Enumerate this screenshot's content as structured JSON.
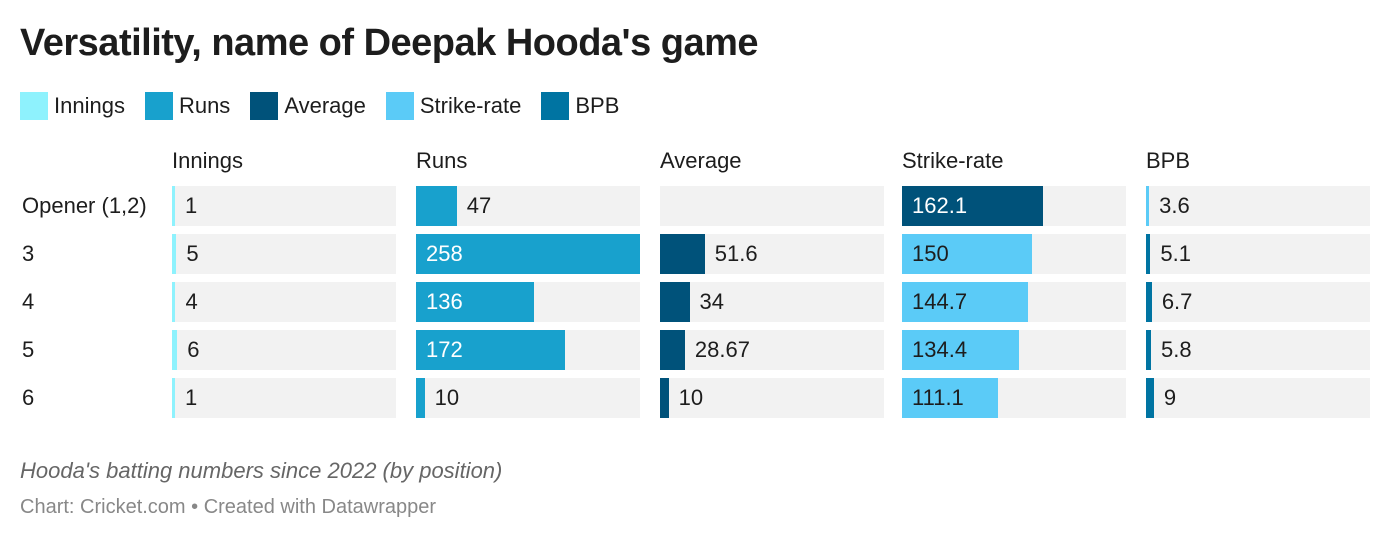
{
  "title": "Versatility, name of Deepak Hooda's game",
  "caption": "Hooda's batting numbers since 2022 (by position)",
  "source": "Chart: Cricket.com • Created with Datawrapper",
  "colors": {
    "Innings": "#8ef2fd",
    "Runs": "#18a1cd",
    "Average": "#00527a",
    "Strike-rate": "#5bcbf7",
    "BPB": "#0074a2"
  },
  "chart_data": {
    "type": "bar",
    "title": "Versatility, name of Deepak Hooda's game",
    "legend": [
      "Innings",
      "Runs",
      "Average",
      "Strike-rate",
      "BPB"
    ],
    "legend_placement": "top-left",
    "categories": [
      "Opener (1,2)",
      "3",
      "4",
      "5",
      "6"
    ],
    "xlim": [
      0,
      258
    ],
    "series": [
      {
        "name": "Innings",
        "values": [
          1,
          5,
          4,
          6,
          1
        ],
        "labels": [
          "1",
          "5",
          "4",
          "6",
          "1"
        ]
      },
      {
        "name": "Runs",
        "values": [
          47,
          258,
          136,
          172,
          10
        ],
        "labels": [
          "47",
          "258",
          "136",
          "172",
          "10"
        ]
      },
      {
        "name": "Average",
        "values": [
          null,
          51.6,
          34,
          28.67,
          10
        ],
        "labels": [
          "",
          "51.6",
          "34",
          "28.67",
          "10"
        ]
      },
      {
        "name": "Strike-rate",
        "values": [
          162.1,
          150,
          144.7,
          134.4,
          111.1
        ],
        "labels": [
          "162.1",
          "150",
          "144.7",
          "134.4",
          "111.1"
        ],
        "highlight_color": {
          "0": "#00527a"
        }
      },
      {
        "name": "BPB",
        "values": [
          3.6,
          5.1,
          6.7,
          5.8,
          9
        ],
        "labels": [
          "3.6",
          "5.1",
          "6.7",
          "5.8",
          "9"
        ],
        "highlight_color": {
          "0": "#5bcbf7"
        }
      }
    ]
  }
}
